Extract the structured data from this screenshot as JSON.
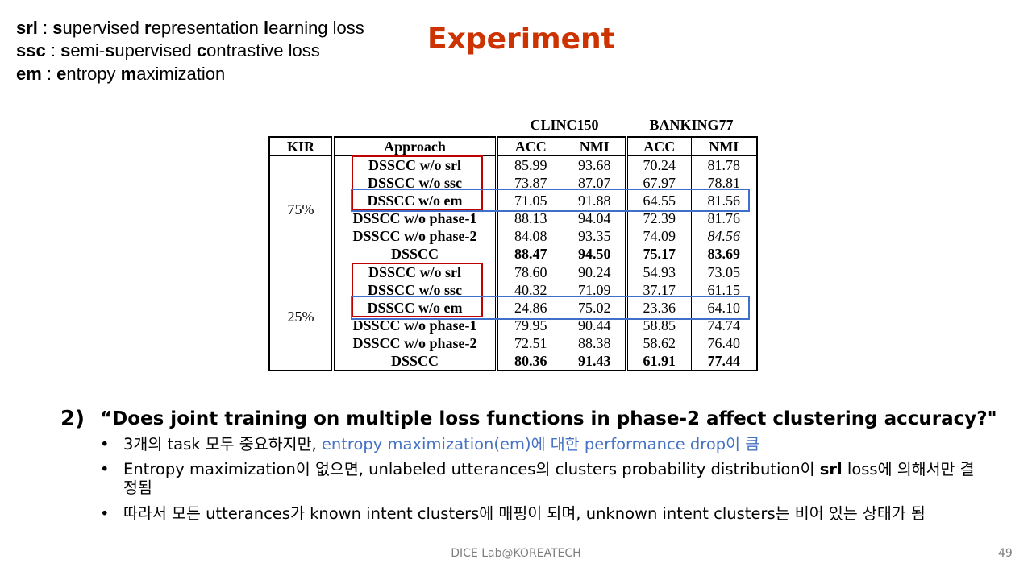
{
  "abbreviations": [
    {
      "code": "srl",
      "sep": " : ",
      "parts": [
        [
          "s",
          true
        ],
        [
          "upervised ",
          false
        ],
        [
          "r",
          true
        ],
        [
          "epresentation ",
          false
        ],
        [
          "l",
          true
        ],
        [
          "earning loss",
          false
        ]
      ]
    },
    {
      "code": "ssc",
      "sep": " : ",
      "parts": [
        [
          "s",
          true
        ],
        [
          "emi-",
          false
        ],
        [
          "s",
          true
        ],
        [
          "upervised ",
          false
        ],
        [
          "c",
          true
        ],
        [
          "ontrastive loss",
          false
        ]
      ]
    },
    {
      "code": "em",
      "sep": " : ",
      "parts": [
        [
          "e",
          true
        ],
        [
          "ntropy ",
          false
        ],
        [
          "m",
          true
        ],
        [
          "aximization",
          false
        ]
      ]
    }
  ],
  "title": "Experiment",
  "table": {
    "dataset_headers": [
      "CLINC150",
      "BANKING77"
    ],
    "columns": [
      "KIR",
      "Approach",
      "ACC",
      "NMI",
      "ACC",
      "NMI"
    ],
    "groups": [
      {
        "kir": "75%",
        "rows": [
          {
            "approach": "DSSCC w/o srl",
            "values": [
              "85.99",
              "93.68",
              "70.24",
              "81.78"
            ],
            "bold": [
              false,
              false,
              false,
              false
            ],
            "italic": [
              false,
              false,
              false,
              false
            ]
          },
          {
            "approach": "DSSCC w/o ssc",
            "values": [
              "73.87",
              "87.07",
              "67.97",
              "78.81"
            ],
            "bold": [
              false,
              false,
              false,
              false
            ],
            "italic": [
              false,
              false,
              false,
              false
            ]
          },
          {
            "approach": "DSSCC w/o em",
            "values": [
              "71.05",
              "91.88",
              "64.55",
              "81.56"
            ],
            "bold": [
              false,
              false,
              false,
              false
            ],
            "italic": [
              false,
              false,
              false,
              false
            ]
          },
          {
            "approach": "DSSCC w/o phase-1",
            "values": [
              "88.13",
              "94.04",
              "72.39",
              "81.76"
            ],
            "bold": [
              false,
              false,
              false,
              false
            ],
            "italic": [
              false,
              false,
              false,
              false
            ]
          },
          {
            "approach": "DSSCC w/o phase-2",
            "values": [
              "84.08",
              "93.35",
              "74.09",
              "84.56"
            ],
            "bold": [
              false,
              false,
              false,
              false
            ],
            "italic": [
              false,
              false,
              false,
              true
            ]
          },
          {
            "approach": "DSSCC",
            "values": [
              "88.47",
              "94.50",
              "75.17",
              "83.69"
            ],
            "bold": [
              true,
              true,
              true,
              true
            ],
            "italic": [
              false,
              false,
              false,
              false
            ]
          }
        ]
      },
      {
        "kir": "25%",
        "rows": [
          {
            "approach": "DSSCC w/o srl",
            "values": [
              "78.60",
              "90.24",
              "54.93",
              "73.05"
            ],
            "bold": [
              false,
              false,
              false,
              false
            ],
            "italic": [
              false,
              false,
              false,
              false
            ]
          },
          {
            "approach": "DSSCC w/o ssc",
            "values": [
              "40.32",
              "71.09",
              "37.17",
              "61.15"
            ],
            "bold": [
              false,
              false,
              false,
              false
            ],
            "italic": [
              false,
              false,
              false,
              false
            ]
          },
          {
            "approach": "DSSCC w/o em",
            "values": [
              "24.86",
              "75.02",
              "23.36",
              "64.10"
            ],
            "bold": [
              false,
              false,
              false,
              false
            ],
            "italic": [
              false,
              false,
              false,
              false
            ]
          },
          {
            "approach": "DSSCC w/o phase-1",
            "values": [
              "79.95",
              "90.44",
              "58.85",
              "74.74"
            ],
            "bold": [
              false,
              false,
              false,
              false
            ],
            "italic": [
              false,
              false,
              false,
              false
            ]
          },
          {
            "approach": "DSSCC w/o phase-2",
            "values": [
              "72.51",
              "88.38",
              "58.62",
              "76.40"
            ],
            "bold": [
              false,
              false,
              false,
              false
            ],
            "italic": [
              false,
              false,
              false,
              false
            ]
          },
          {
            "approach": "DSSCC",
            "values": [
              "80.36",
              "91.43",
              "61.91",
              "77.44"
            ],
            "bold": [
              true,
              true,
              true,
              true
            ],
            "italic": [
              false,
              false,
              false,
              false
            ]
          }
        ]
      }
    ],
    "highlight_colors": {
      "red": "#c00000",
      "blue": "#3f6fc9"
    }
  },
  "question": {
    "number": "2)",
    "text": "“Does joint training on multiple loss functions in phase-2 affect clustering accuracy?\""
  },
  "bullets": [
    {
      "segments": [
        {
          "text": "3개의 task 모두 중요하지만, ",
          "style": "normal"
        },
        {
          "text": "entropy maximization(em)에 대한 performance drop이 큼",
          "style": "blue"
        }
      ]
    },
    {
      "segments": [
        {
          "text": "Entropy maximization이 없으면, unlabeled utterances의 clusters probability distribution이 ",
          "style": "normal"
        },
        {
          "text": "srl",
          "style": "bold"
        },
        {
          "text": " loss에 의해서만 결정됨",
          "style": "normal"
        }
      ]
    },
    {
      "segments": [
        {
          "text": "따라서 모든 utterances가 known intent clusters에 매핑이 되며, unknown intent clusters는 비어 있는 상태가 됨",
          "style": "normal"
        }
      ]
    }
  ],
  "bullet_glyph": "•",
  "footer": "DICE Lab@KOREATECH",
  "page_number": "49",
  "colors": {
    "title": "#cc3300",
    "blue_text": "#4472c4",
    "footer": "#7f7f7f"
  }
}
